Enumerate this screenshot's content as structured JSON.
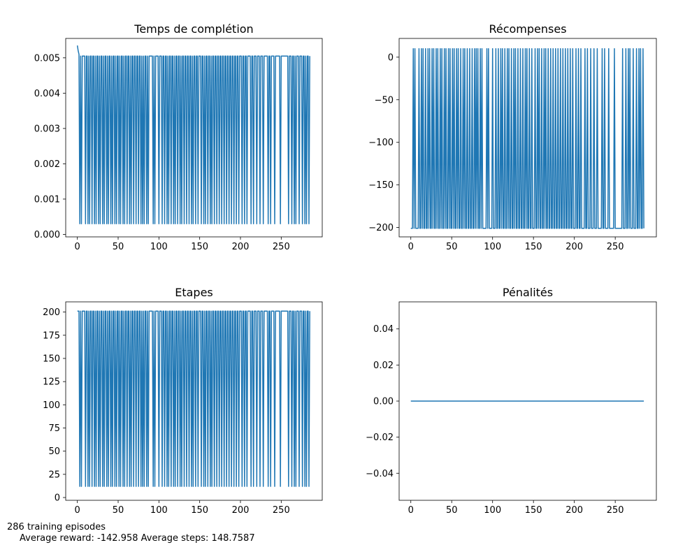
{
  "chart_data": [
    {
      "type": "line",
      "title": "Temps de complétion",
      "xlim": [
        -14.3,
        300.3
      ],
      "ylim": [
        -7e-05,
        0.00555
      ],
      "xticks": [
        "0",
        "50",
        "100",
        "150",
        "200",
        "250"
      ],
      "yticks": [
        "0.000",
        "0.001",
        "0.002",
        "0.003",
        "0.004",
        "0.005"
      ],
      "ytick_values": [
        0,
        0.001,
        0.002,
        0.003,
        0.004,
        0.005
      ],
      "color": "#1f77b4",
      "high": 0.00505,
      "low": 0.0003,
      "initial": [
        0.00535,
        0.0052,
        0.0051
      ],
      "low_episodes": [
        3,
        5,
        10,
        13,
        15,
        18,
        21,
        23,
        26,
        28,
        31,
        33,
        36,
        38,
        41,
        43,
        46,
        48,
        51,
        53,
        56,
        58,
        61,
        64,
        66,
        69,
        72,
        75,
        78,
        80,
        82,
        85,
        87,
        93,
        95,
        100,
        104,
        107,
        110,
        112,
        115,
        118,
        120,
        123,
        126,
        128,
        131,
        134,
        137,
        140,
        142,
        145,
        148,
        152,
        155,
        157,
        160,
        163,
        165,
        168,
        171,
        174,
        177,
        180,
        183,
        186,
        189,
        192,
        195,
        198,
        202,
        205,
        208,
        213,
        216,
        220,
        224,
        228,
        234,
        237,
        242,
        249,
        259,
        263,
        266,
        268,
        272,
        276,
        279,
        281,
        284
      ]
    },
    {
      "type": "line",
      "title": "Récompenses",
      "xlim": [
        -14.3,
        300.3
      ],
      "ylim": [
        -211,
        22
      ],
      "xticks": [
        "0",
        "50",
        "100",
        "150",
        "200",
        "250"
      ],
      "yticks": [
        "−200",
        "−150",
        "−100",
        "−50",
        "0"
      ],
      "ytick_values": [
        -200,
        -150,
        -100,
        -50,
        0
      ],
      "color": "#1f77b4",
      "high_reward": 10,
      "low_reward": -201
    },
    {
      "type": "line",
      "title": "Etapes",
      "xlim": [
        -14.3,
        300.3
      ],
      "ylim": [
        -3,
        211
      ],
      "xticks": [
        "0",
        "50",
        "100",
        "150",
        "200",
        "250"
      ],
      "yticks": [
        "0",
        "25",
        "50",
        "75",
        "100",
        "125",
        "150",
        "175",
        "200"
      ],
      "ytick_values": [
        0,
        25,
        50,
        75,
        100,
        125,
        150,
        175,
        200
      ],
      "color": "#1f77b4",
      "high_steps": 201,
      "low_steps": 12
    },
    {
      "type": "line",
      "title": "Pénalités",
      "xlim": [
        -14.3,
        300.3
      ],
      "ylim": [
        -0.055,
        0.055
      ],
      "xticks": [
        "0",
        "50",
        "100",
        "150",
        "200",
        "250"
      ],
      "yticks": [
        "−0.04",
        "−0.02",
        "0.00",
        "0.02",
        "0.04"
      ],
      "ytick_values": [
        -0.04,
        -0.02,
        0,
        0.02,
        0.04
      ],
      "color": "#1f77b4",
      "x": [
        0,
        285
      ],
      "y": [
        0,
        0
      ]
    }
  ],
  "footer": {
    "line1": "286 training episodes",
    "line2": "Average reward: -142.958 Average steps: 148.7587"
  }
}
